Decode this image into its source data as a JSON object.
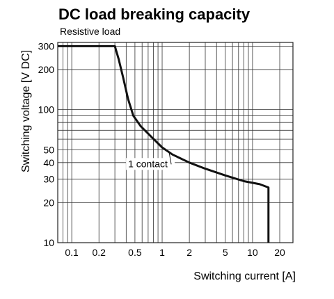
{
  "chart_data": {
    "type": "line",
    "title": "DC load breaking capacity",
    "subtitle": "Resistive load",
    "xlabel": "Switching current [A]",
    "ylabel": "Switching voltage [V DC]",
    "x_scale": "log",
    "y_scale": "log",
    "xlim": [
      0.07,
      28
    ],
    "ylim": [
      10,
      320
    ],
    "x_ticks": [
      0.1,
      0.2,
      0.5,
      1,
      2,
      5,
      10,
      20
    ],
    "x_tick_labels": [
      "0.1",
      "0.2",
      "0.5",
      "1",
      "2",
      "5",
      "10",
      "20"
    ],
    "y_ticks": [
      10,
      20,
      30,
      40,
      50,
      100,
      200,
      300
    ],
    "y_tick_labels": [
      "10",
      "20",
      "30",
      "40",
      "50",
      "100",
      "200",
      "300"
    ],
    "grid": true,
    "series": [
      {
        "name": "1 contact",
        "points": [
          [
            0.07,
            300
          ],
          [
            0.3,
            300
          ],
          [
            0.33,
            240
          ],
          [
            0.37,
            175
          ],
          [
            0.42,
            120
          ],
          [
            0.48,
            90
          ],
          [
            0.58,
            75
          ],
          [
            0.75,
            63
          ],
          [
            1.0,
            52
          ],
          [
            1.3,
            46
          ],
          [
            2.0,
            40
          ],
          [
            3.0,
            36
          ],
          [
            5.0,
            32
          ],
          [
            8.0,
            29
          ],
          [
            12.0,
            27.5
          ],
          [
            15.0,
            26
          ],
          [
            15.0,
            10
          ]
        ]
      }
    ],
    "annotations": [
      {
        "text": "1 contact",
        "x": 1.2,
        "y": 40
      }
    ]
  }
}
